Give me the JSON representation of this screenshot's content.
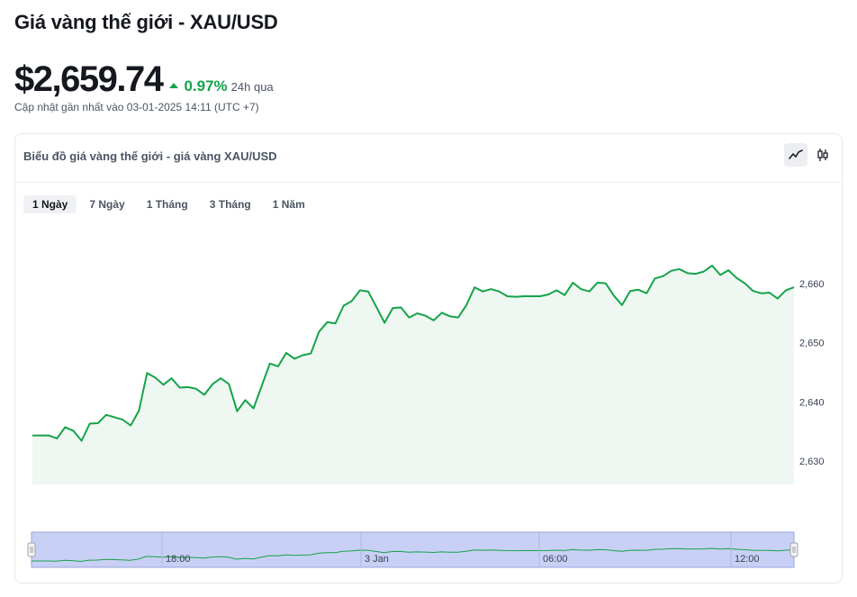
{
  "header": {
    "title": "Giá vàng thế giới - XAU/USD",
    "price": "$2,659.74",
    "change_value": "0.97%",
    "change_period": "24h qua",
    "updated": "Cập nhật gần nhất vào 03-01-2025 14:11 (UTC +7)"
  },
  "card": {
    "title": "Biểu đồ giá vàng thế giới - giá vàng XAU/USD",
    "view_buttons": [
      "line-chart-icon",
      "candlestick-icon"
    ],
    "active_view": "line-chart-icon"
  },
  "tabs": [
    {
      "label": "1 Ngày",
      "active": true
    },
    {
      "label": "7 Ngày",
      "active": false
    },
    {
      "label": "1 Tháng",
      "active": false
    },
    {
      "label": "3 Tháng",
      "active": false
    },
    {
      "label": "1 Năm",
      "active": false
    }
  ],
  "colors": {
    "line": "#16a34a",
    "area": "#eef7f1",
    "positive": "#16a34a",
    "navigator_fill": "#c9d0f5",
    "navigator_border": "#9aa3e0"
  },
  "chart_data": {
    "type": "area",
    "ylim": [
      2626,
      2664
    ],
    "y_ticks": [
      2630,
      2640,
      2650,
      2660
    ],
    "y_tick_labels": [
      "2,630",
      "2,640",
      "2,650",
      "2,660"
    ],
    "grid": false,
    "navigator_x_labels": [
      "18:00",
      "3 Jan",
      "06:00",
      "12:00"
    ],
    "values": [
      2634.3,
      2634.3,
      2634.3,
      2633.8,
      2635.7,
      2635.1,
      2633.4,
      2636.3,
      2636.4,
      2637.8,
      2637.4,
      2637.0,
      2636.0,
      2638.5,
      2644.9,
      2644.1,
      2642.9,
      2644.0,
      2642.4,
      2642.5,
      2642.2,
      2641.2,
      2643.0,
      2644.0,
      2643.0,
      2638.4,
      2640.3,
      2638.9,
      2642.7,
      2646.5,
      2646.0,
      2648.3,
      2647.3,
      2647.9,
      2648.2,
      2651.9,
      2653.5,
      2653.3,
      2656.3,
      2657.1,
      2658.9,
      2658.7,
      2656.1,
      2653.4,
      2655.9,
      2656.0,
      2654.3,
      2655.0,
      2654.6,
      2653.8,
      2655.1,
      2654.5,
      2654.3,
      2656.4,
      2659.4,
      2658.7,
      2659.1,
      2658.7,
      2657.9,
      2657.8,
      2657.9,
      2657.9,
      2657.9,
      2658.2,
      2658.9,
      2658.1,
      2660.2,
      2659.1,
      2658.7,
      2660.2,
      2660.1,
      2658.0,
      2656.4,
      2658.8,
      2659.0,
      2658.4,
      2660.9,
      2661.3,
      2662.2,
      2662.5,
      2661.8,
      2661.7,
      2662.1,
      2663.1,
      2661.5,
      2662.3,
      2661.0,
      2660.1,
      2658.8,
      2658.4,
      2658.5,
      2657.5,
      2658.9,
      2659.4
    ]
  }
}
